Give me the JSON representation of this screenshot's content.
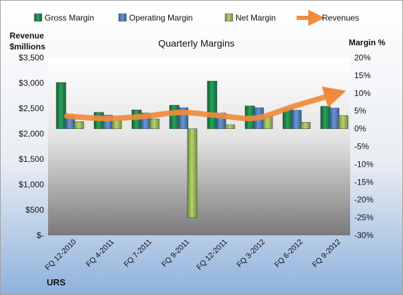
{
  "chart_data": {
    "type": "bar",
    "title": "Quarterly Margins",
    "company": "URS",
    "categories": [
      "FQ 12-2010",
      "FQ 4-2011",
      "FQ 7-2011",
      "FQ 9-2011",
      "FQ 12-2011",
      "FQ 3-2012",
      "FQ 6-2012",
      "FQ 9-2012"
    ],
    "left_axis": {
      "label_lines": [
        "Revenue",
        "$millions"
      ],
      "min": 0,
      "max": 3500,
      "step": 500,
      "ticks": [
        "$-",
        "$500",
        "$1,000",
        "$1,500",
        "$2,000",
        "$2,500",
        "$3,000",
        "$3,500"
      ]
    },
    "right_axis": {
      "label": "Margin %",
      "min": -30,
      "max": 20,
      "step": 5,
      "ticks": [
        "-30%",
        "-25%",
        "-20%",
        "-15%",
        "-10%",
        "-5%",
        "0%",
        "5%",
        "10%",
        "15%",
        "20%"
      ]
    },
    "series": [
      {
        "name": "Gross Margin",
        "axis": "right",
        "kind": "bar",
        "color": "#1f8a4c",
        "values": [
          13.0,
          4.6,
          5.3,
          6.6,
          13.4,
          6.4,
          5.6,
          6.3
        ]
      },
      {
        "name": "Operating Margin",
        "axis": "right",
        "kind": "bar",
        "color": "#4f81bd",
        "values": [
          3.8,
          3.8,
          4.4,
          5.9,
          4.4,
          5.9,
          5.2,
          5.8
        ]
      },
      {
        "name": "Net Margin",
        "axis": "right",
        "kind": "bar",
        "color": "#9bbb59",
        "values": [
          2.0,
          2.3,
          2.8,
          -25.0,
          1.1,
          3.4,
          1.8,
          3.7
        ]
      },
      {
        "name": "Revenues",
        "axis": "left",
        "kind": "line",
        "color": "#f08b3c",
        "values": [
          2350,
          2300,
          2340,
          2420,
          2360,
          2310,
          2540,
          2760
        ]
      }
    ],
    "legend_position": "top",
    "grid": false
  }
}
